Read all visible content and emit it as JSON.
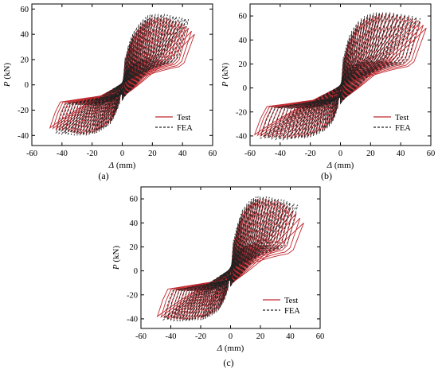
{
  "chart_data": [
    {
      "type": "line",
      "panel_label": "(a)",
      "xlabel": "Δ (mm)",
      "ylabel": "P (kN)",
      "xlim": [
        -60,
        60
      ],
      "ylim": [
        -48,
        64
      ],
      "xticks": [
        -60,
        -40,
        -20,
        0,
        20,
        40,
        60
      ],
      "yticks": [
        -40,
        -20,
        0,
        20,
        40,
        60
      ],
      "grid": false,
      "legend_position": "bottom-right",
      "legend": [
        "Test",
        "FEA"
      ],
      "series": [
        {
          "name": "Test",
          "color": "#c0272d",
          "style": "solid",
          "amplitudes": [
            2,
            4,
            6,
            8,
            11,
            14,
            17,
            20,
            24,
            28,
            32,
            36,
            40,
            44,
            48
          ],
          "peak_loads_pos": [
            21,
            29,
            35,
            40,
            45,
            49,
            52,
            53,
            54,
            53,
            52,
            50,
            48,
            45,
            40
          ],
          "peak_loads_neg": [
            -15,
            -21,
            -26,
            -30,
            -33,
            -35,
            -37,
            -38,
            -39,
            -39,
            -38,
            -37,
            -36,
            -35,
            -34
          ]
        },
        {
          "name": "FEA",
          "color": "#222222",
          "style": "dashed",
          "amplitudes": [
            2,
            4,
            6,
            8,
            11,
            14,
            17,
            20,
            24,
            28,
            32,
            36,
            40,
            44
          ],
          "peak_loads_pos": [
            22,
            31,
            38,
            43,
            48,
            52,
            55,
            56,
            56,
            56,
            55,
            54,
            53,
            52
          ],
          "peak_loads_neg": [
            -16,
            -22,
            -27,
            -31,
            -34,
            -36,
            -38,
            -39,
            -40,
            -40,
            -40,
            -39,
            -39,
            -38
          ]
        }
      ]
    },
    {
      "type": "line",
      "panel_label": "(b)",
      "xlabel": "Δ (mm)",
      "ylabel": "P (kN)",
      "xlim": [
        -60,
        60
      ],
      "ylim": [
        -48,
        70
      ],
      "xticks": [
        -60,
        -40,
        -20,
        0,
        20,
        40,
        60
      ],
      "yticks": [
        -40,
        -20,
        0,
        20,
        40,
        60
      ],
      "grid": false,
      "legend_position": "bottom-right",
      "legend": [
        "Test",
        "FEA"
      ],
      "series": [
        {
          "name": "Test",
          "color": "#c0272d",
          "style": "solid",
          "amplitudes": [
            2,
            4,
            6,
            9,
            12,
            16,
            20,
            24,
            28,
            33,
            38,
            43,
            48,
            53,
            57
          ],
          "peak_loads_pos": [
            24,
            33,
            41,
            48,
            54,
            58,
            60,
            61,
            62,
            62,
            61,
            60,
            58,
            55,
            50
          ],
          "peak_loads_neg": [
            -17,
            -24,
            -29,
            -33,
            -36,
            -38,
            -40,
            -41,
            -41,
            -42,
            -42,
            -41,
            -41,
            -40,
            -39
          ]
        },
        {
          "name": "FEA",
          "color": "#222222",
          "style": "dashed",
          "amplitudes": [
            2,
            4,
            6,
            9,
            12,
            16,
            20,
            24,
            28,
            33,
            38,
            43,
            48,
            53
          ],
          "peak_loads_pos": [
            26,
            36,
            44,
            51,
            56,
            60,
            62,
            63,
            63,
            63,
            62,
            61,
            60,
            58
          ],
          "peak_loads_neg": [
            -18,
            -25,
            -30,
            -34,
            -37,
            -39,
            -41,
            -42,
            -42,
            -43,
            -43,
            -43,
            -42,
            -42
          ]
        }
      ]
    },
    {
      "type": "line",
      "panel_label": "(c)",
      "xlabel": "Δ (mm)",
      "ylabel": "P (kN)",
      "xlim": [
        -60,
        60
      ],
      "ylim": [
        -48,
        70
      ],
      "xticks": [
        -60,
        -40,
        -20,
        0,
        20,
        40,
        60
      ],
      "yticks": [
        -40,
        -20,
        0,
        20,
        40,
        60
      ],
      "grid": false,
      "legend_position": "bottom-right",
      "legend": [
        "Test",
        "FEA"
      ],
      "series": [
        {
          "name": "Test",
          "color": "#c0272d",
          "style": "solid",
          "amplitudes": [
            2,
            4,
            6,
            8,
            11,
            14,
            17,
            20,
            24,
            28,
            32,
            36,
            40,
            44,
            49
          ],
          "peak_loads_pos": [
            24,
            33,
            41,
            48,
            54,
            58,
            60,
            60,
            60,
            59,
            58,
            56,
            53,
            48,
            40
          ],
          "peak_loads_neg": [
            -16,
            -23,
            -28,
            -32,
            -35,
            -37,
            -39,
            -40,
            -40,
            -41,
            -41,
            -40,
            -40,
            -39,
            -38
          ]
        },
        {
          "name": "FEA",
          "color": "#222222",
          "style": "dashed",
          "amplitudes": [
            2,
            4,
            6,
            8,
            11,
            14,
            17,
            20,
            24,
            28,
            32,
            36,
            40,
            45
          ],
          "peak_loads_pos": [
            26,
            36,
            44,
            51,
            56,
            60,
            62,
            62,
            62,
            61,
            60,
            59,
            57,
            55
          ],
          "peak_loads_neg": [
            -17,
            -24,
            -29,
            -33,
            -36,
            -38,
            -40,
            -41,
            -41,
            -42,
            -42,
            -42,
            -41,
            -41
          ]
        }
      ]
    }
  ]
}
